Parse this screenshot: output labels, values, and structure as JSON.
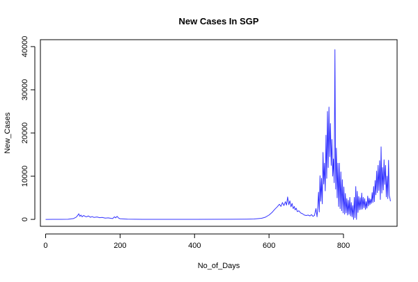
{
  "chart_data": {
    "type": "line",
    "title": "New Cases In SGP",
    "xlabel": "No_of_Days",
    "ylabel": "New_Cases",
    "xlim": [
      -14,
      944
    ],
    "ylim": [
      -1600,
      41600
    ],
    "x_ticks": [
      0,
      200,
      400,
      600,
      800
    ],
    "y_ticks": [
      0,
      10000,
      20000,
      30000,
      40000
    ],
    "grid": false,
    "legend": "none",
    "series": [
      {
        "color": "#3333ff",
        "points": [
          [
            0,
            0
          ],
          [
            20,
            10
          ],
          [
            40,
            20
          ],
          [
            60,
            30
          ],
          [
            75,
            200
          ],
          [
            82,
            500
          ],
          [
            86,
            900
          ],
          [
            89,
            1300
          ],
          [
            92,
            700
          ],
          [
            95,
            1000
          ],
          [
            98,
            600
          ],
          [
            102,
            900
          ],
          [
            106,
            700
          ],
          [
            110,
            600
          ],
          [
            115,
            800
          ],
          [
            120,
            500
          ],
          [
            125,
            650
          ],
          [
            130,
            450
          ],
          [
            138,
            550
          ],
          [
            145,
            400
          ],
          [
            152,
            450
          ],
          [
            160,
            300
          ],
          [
            168,
            350
          ],
          [
            175,
            250
          ],
          [
            180,
            200
          ],
          [
            185,
            600
          ],
          [
            188,
            350
          ],
          [
            192,
            700
          ],
          [
            196,
            300
          ],
          [
            200,
            150
          ],
          [
            220,
            50
          ],
          [
            260,
            20
          ],
          [
            300,
            20
          ],
          [
            400,
            20
          ],
          [
            500,
            30
          ],
          [
            540,
            60
          ],
          [
            560,
            100
          ],
          [
            580,
            250
          ],
          [
            590,
            500
          ],
          [
            600,
            1000
          ],
          [
            608,
            1600
          ],
          [
            615,
            2300
          ],
          [
            622,
            2900
          ],
          [
            628,
            3500
          ],
          [
            632,
            3000
          ],
          [
            636,
            3900
          ],
          [
            640,
            3200
          ],
          [
            644,
            4100
          ],
          [
            647,
            3300
          ],
          [
            650,
            5200
          ],
          [
            653,
            3400
          ],
          [
            656,
            4300
          ],
          [
            659,
            2900
          ],
          [
            662,
            3700
          ],
          [
            665,
            2500
          ],
          [
            668,
            3000
          ],
          [
            670,
            2200
          ],
          [
            673,
            2600
          ],
          [
            676,
            1800
          ],
          [
            680,
            2000
          ],
          [
            685,
            1500
          ],
          [
            690,
            1300
          ],
          [
            695,
            1000
          ],
          [
            700,
            900
          ],
          [
            705,
            1000
          ],
          [
            710,
            800
          ],
          [
            714,
            1100
          ],
          [
            718,
            700
          ],
          [
            722,
            900
          ],
          [
            726,
            2500
          ],
          [
            729,
            600
          ],
          [
            731,
            2900
          ],
          [
            733,
            6300
          ],
          [
            735,
            1700
          ],
          [
            737,
            10100
          ],
          [
            739,
            4200
          ],
          [
            741,
            9500
          ],
          [
            743,
            3600
          ],
          [
            745,
            15500
          ],
          [
            747,
            8200
          ],
          [
            749,
            13000
          ],
          [
            751,
            6600
          ],
          [
            753,
            19500
          ],
          [
            755,
            9500
          ],
          [
            757,
            25000
          ],
          [
            759,
            12000
          ],
          [
            761,
            26000
          ],
          [
            763,
            14500
          ],
          [
            765,
            22200
          ],
          [
            767,
            12500
          ],
          [
            769,
            18500
          ],
          [
            771,
            10000
          ],
          [
            773,
            14000
          ],
          [
            775,
            8500
          ],
          [
            777,
            39300
          ],
          [
            779,
            7000
          ],
          [
            781,
            16500
          ],
          [
            783,
            5000
          ],
          [
            785,
            13000
          ],
          [
            787,
            3000
          ],
          [
            789,
            13000
          ],
          [
            791,
            2500
          ],
          [
            793,
            11000
          ],
          [
            795,
            2000
          ],
          [
            797,
            9200
          ],
          [
            799,
            1500
          ],
          [
            801,
            7500
          ],
          [
            803,
            1200
          ],
          [
            805,
            6000
          ],
          [
            807,
            1500
          ],
          [
            809,
            4800
          ],
          [
            811,
            1000
          ],
          [
            813,
            4400
          ],
          [
            815,
            1200
          ],
          [
            817,
            5100
          ],
          [
            819,
            800
          ],
          [
            821,
            3900
          ],
          [
            823,
            600
          ],
          [
            825,
            3200
          ],
          [
            827,
            0
          ],
          [
            829,
            5100
          ],
          [
            831,
            400
          ],
          [
            833,
            7600
          ],
          [
            835,
            0
          ],
          [
            837,
            6500
          ],
          [
            839,
            1600
          ],
          [
            841,
            5300
          ],
          [
            843,
            2200
          ],
          [
            845,
            5000
          ],
          [
            847,
            2300
          ],
          [
            849,
            6100
          ],
          [
            851,
            2400
          ],
          [
            853,
            5100
          ],
          [
            855,
            2700
          ],
          [
            857,
            4800
          ],
          [
            859,
            2300
          ],
          [
            861,
            4100
          ],
          [
            863,
            2600
          ],
          [
            865,
            5400
          ],
          [
            867,
            3100
          ],
          [
            869,
            4900
          ],
          [
            871,
            3400
          ],
          [
            873,
            4700
          ],
          [
            875,
            3700
          ],
          [
            877,
            6200
          ],
          [
            879,
            3900
          ],
          [
            881,
            7600
          ],
          [
            883,
            4100
          ],
          [
            885,
            9000
          ],
          [
            887,
            5700
          ],
          [
            889,
            11200
          ],
          [
            891,
            6200
          ],
          [
            893,
            12500
          ],
          [
            895,
            6700
          ],
          [
            897,
            13600
          ],
          [
            899,
            4600
          ],
          [
            901,
            16800
          ],
          [
            903,
            6100
          ],
          [
            905,
            12000
          ],
          [
            907,
            6800
          ],
          [
            909,
            13800
          ],
          [
            911,
            8100
          ],
          [
            913,
            12500
          ],
          [
            915,
            5200
          ],
          [
            917,
            10000
          ],
          [
            919,
            4800
          ],
          [
            921,
            13700
          ],
          [
            923,
            5500
          ],
          [
            925,
            4800
          ],
          [
            926,
            4200
          ]
        ]
      }
    ]
  }
}
